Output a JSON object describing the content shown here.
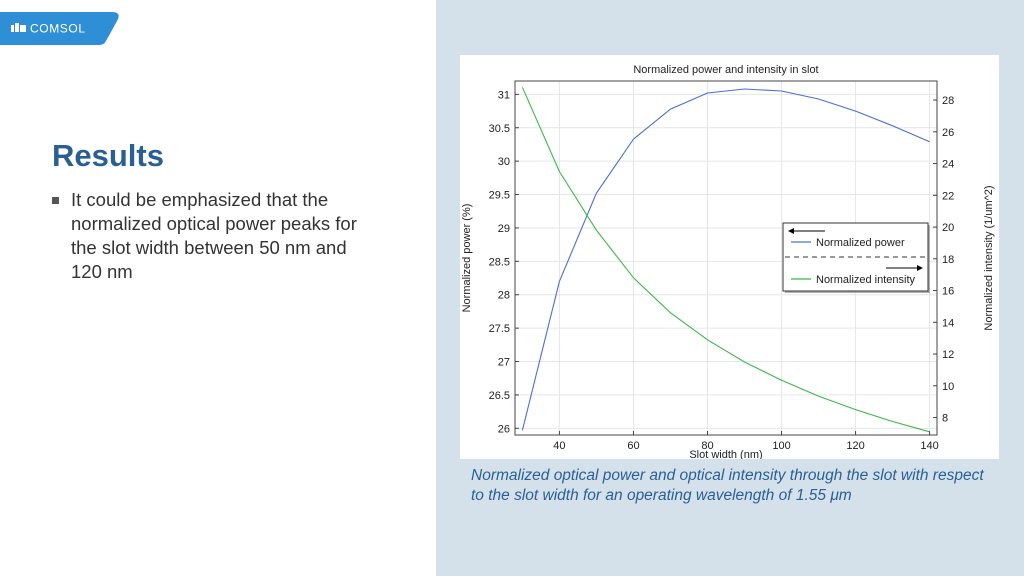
{
  "brand": {
    "logo_text": "COMSOL",
    "color": "#2e8fd6"
  },
  "slide": {
    "title": "Results",
    "bullet": "It could be emphasized that the normalized optical power peaks for the slot width between 50 nm and 120 nm",
    "caption": "Normalized optical power and optical intensity through the slot with respect to the slot width for an operating wavelength of 1.55 μm"
  },
  "chart_data": {
    "type": "line",
    "title": "Normalized power and intensity in slot",
    "xlabel": "Slot width (nm)",
    "ylabel": "Normalized power (%)",
    "y2label": "Normalized intensity (1/um^2)",
    "xlim": [
      28,
      142
    ],
    "ylim": [
      25.9,
      31.2
    ],
    "y2lim": [
      6.9,
      29.2
    ],
    "xticks": [
      40,
      60,
      80,
      100,
      120,
      140
    ],
    "yticks": [
      26,
      26.5,
      27,
      27.5,
      28,
      28.5,
      29,
      29.5,
      30,
      30.5,
      31
    ],
    "y2ticks": [
      8,
      10,
      12,
      14,
      16,
      18,
      20,
      22,
      24,
      26,
      28
    ],
    "grid": true,
    "legend_position": "center-right",
    "x": [
      30,
      40,
      50,
      60,
      70,
      80,
      90,
      100,
      110,
      120,
      130,
      140
    ],
    "series": [
      {
        "name": "Normalized power",
        "axis": "left",
        "color": "#4a6fd6",
        "values": [
          25.97,
          28.2,
          29.52,
          30.33,
          30.78,
          31.02,
          31.08,
          31.05,
          30.93,
          30.75,
          30.53,
          30.29
        ]
      },
      {
        "name": "Normalized intensity",
        "axis": "right",
        "color": "#3cb84a",
        "values": [
          28.8,
          23.5,
          19.8,
          16.8,
          14.6,
          12.9,
          11.5,
          10.35,
          9.35,
          8.5,
          7.75,
          7.1
        ]
      }
    ]
  }
}
